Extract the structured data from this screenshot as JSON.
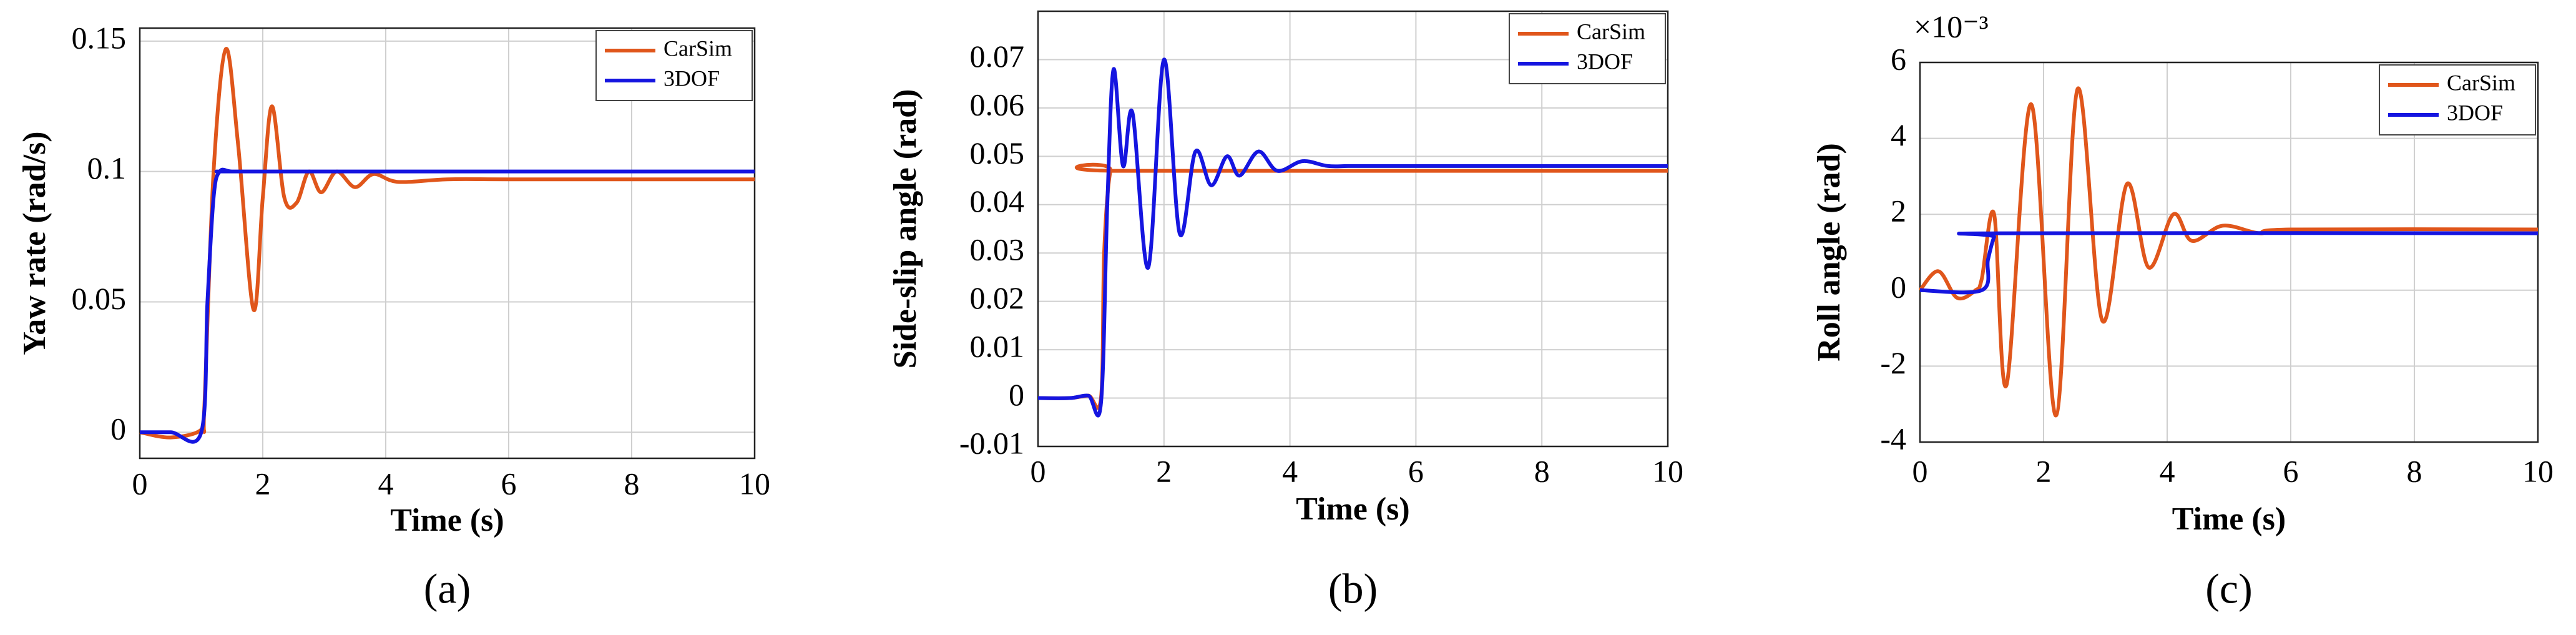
{
  "chart_data": [
    {
      "type": "line",
      "caption": "(a)",
      "xlabel": "Time (s)",
      "ylabel": "Yaw rate (rad/s)",
      "xlim": [
        0,
        10
      ],
      "ylim": [
        -0.01,
        0.155
      ],
      "xticks": [
        0,
        2,
        4,
        6,
        8,
        10
      ],
      "yticks": [
        0,
        0.05,
        0.1,
        0.15
      ],
      "grid": true,
      "legend_position": "upper right",
      "series": [
        {
          "name": "CarSim",
          "color": "#e0561b",
          "x": [
            0,
            0.5,
            1.0,
            1.05,
            1.2,
            1.4,
            1.6,
            1.85,
            2.0,
            2.15,
            2.35,
            2.55,
            2.75,
            2.95,
            3.2,
            3.5,
            3.8,
            4.2,
            5,
            6,
            8,
            10
          ],
          "values": [
            0,
            -0.002,
            0.001,
            0.01,
            0.1,
            0.147,
            0.11,
            0.047,
            0.09,
            0.125,
            0.09,
            0.088,
            0.1,
            0.092,
            0.1,
            0.094,
            0.099,
            0.096,
            0.097,
            0.097,
            0.097,
            0.097
          ]
        },
        {
          "name": "3DOF",
          "color": "#1515e0",
          "x": [
            0,
            0.5,
            1.0,
            1.1,
            1.2,
            1.3,
            1.5,
            2,
            10
          ],
          "values": [
            0,
            0,
            0,
            0.05,
            0.09,
            0.1,
            0.1,
            0.1,
            0.1
          ]
        }
      ]
    },
    {
      "type": "line",
      "caption": "(b)",
      "xlabel": "Time (s)",
      "ylabel": "Side-slip angle (rad)",
      "xlim": [
        0,
        10
      ],
      "ylim": [
        -0.01,
        0.08
      ],
      "xticks": [
        0,
        2,
        4,
        6,
        8,
        10
      ],
      "yticks": [
        -0.01,
        0,
        0.01,
        0.02,
        0.03,
        0.04,
        0.05,
        0.06,
        0.07
      ],
      "grid": true,
      "legend_position": "upper right",
      "series": [
        {
          "name": "CarSim",
          "color": "#e0561b",
          "x": [
            0,
            0.5,
            0.8,
            1,
            1.05,
            1.15,
            1.3,
            10
          ],
          "values": [
            0,
            0,
            0.0005,
            0,
            0.03,
            0.047,
            0.047,
            0.047
          ]
        },
        {
          "name": "3DOF",
          "color": "#1515e0",
          "x": [
            0,
            0.5,
            0.8,
            1,
            1.1,
            1.2,
            1.35,
            1.5,
            1.75,
            2.0,
            2.25,
            2.5,
            2.75,
            3.0,
            3.2,
            3.5,
            3.8,
            4.2,
            4.6,
            5,
            6,
            10
          ],
          "values": [
            0,
            0,
            0.0005,
            -0.001,
            0.04,
            0.068,
            0.048,
            0.059,
            0.027,
            0.07,
            0.034,
            0.051,
            0.044,
            0.05,
            0.046,
            0.051,
            0.047,
            0.049,
            0.048,
            0.048,
            0.048,
            0.048
          ]
        }
      ]
    },
    {
      "type": "line",
      "caption": "(c)",
      "xlabel": "Time (s)",
      "ylabel": "Roll angle (rad)",
      "y_multiplier": "×10⁻³",
      "xlim": [
        0,
        10
      ],
      "ylim": [
        -4,
        6
      ],
      "xticks": [
        0,
        2,
        4,
        6,
        8,
        10
      ],
      "yticks": [
        -4,
        -2,
        0,
        2,
        4,
        6
      ],
      "grid": true,
      "legend_position": "upper right",
      "series": [
        {
          "name": "CarSim",
          "color": "#e0561b",
          "x": [
            0,
            0.3,
            0.6,
            0.9,
            1.0,
            1.2,
            1.4,
            1.8,
            2.2,
            2.55,
            2.95,
            3.35,
            3.7,
            4.1,
            4.4,
            4.9,
            5.5,
            6,
            10
          ],
          "values": [
            0,
            0.5,
            -0.2,
            0,
            0.3,
            2,
            -2.5,
            4.9,
            -3.3,
            5.3,
            -0.8,
            2.8,
            0.6,
            2,
            1.3,
            1.7,
            1.5,
            1.6,
            1.6
          ]
        },
        {
          "name": "3DOF",
          "color": "#1515e0",
          "x": [
            0,
            1,
            1.1,
            1.2,
            1.3,
            10
          ],
          "values": [
            0,
            0,
            0.8,
            1.4,
            1.5,
            1.5
          ]
        }
      ]
    }
  ]
}
